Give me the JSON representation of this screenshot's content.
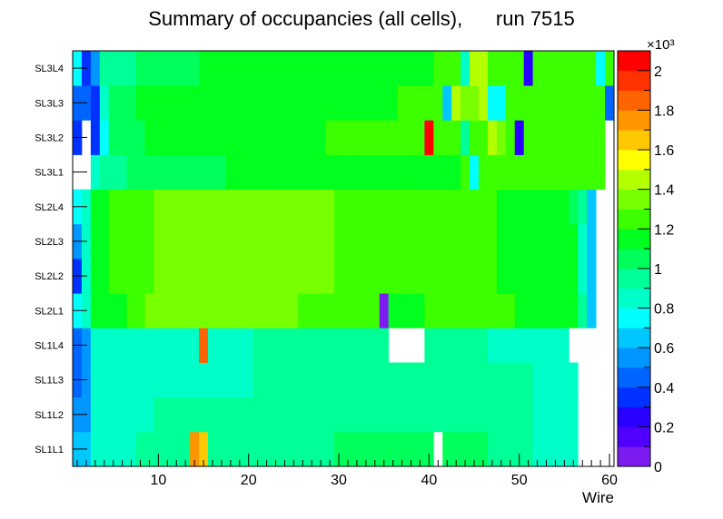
{
  "chart_data": {
    "type": "heatmap",
    "title": "Summary of occupancies (all cells),      run 7515",
    "xlabel": "Wire",
    "ylabel": "",
    "xlim": [
      0.5,
      60.5
    ],
    "x_ticks": [
      10,
      20,
      30,
      40,
      50,
      60
    ],
    "y_categories": [
      "SL1L1",
      "SL1L2",
      "SL1L3",
      "SL1L4",
      "SL2L1",
      "SL2L2",
      "SL2L3",
      "SL2L4",
      "SL3L1",
      "SL3L2",
      "SL3L3",
      "SL3L4"
    ],
    "zlim": [
      0,
      2100
    ],
    "z_exponent_label": "×10³",
    "z_ticks": [
      0,
      0.2,
      0.4,
      0.6,
      0.8,
      1,
      1.2,
      1.4,
      1.6,
      1.8,
      2
    ],
    "z_tick_labels": [
      "0",
      "0.2",
      "0.4",
      "0.6",
      "0.8",
      "1",
      "1.2",
      "1.4",
      "1.6",
      "1.8",
      "2"
    ],
    "palette": [
      "#7d1cf0",
      "#5000ff",
      "#2900ff",
      "#0032ff",
      "#0064ff",
      "#0096ff",
      "#00c8ff",
      "#00ffff",
      "#00ffc8",
      "#00ff96",
      "#00ff5a",
      "#00ff1e",
      "#3cff00",
      "#78ff00",
      "#b4ff00",
      "#ffff00",
      "#ffc800",
      "#ff9600",
      "#ff6400",
      "#ff3200",
      "#ff0000"
    ],
    "grid": false,
    "values": [
      [
        650,
        650,
        800,
        800,
        800,
        800,
        850,
        950,
        950,
        950,
        950,
        950,
        950,
        1700,
        1600,
        950,
        950,
        950,
        950,
        950,
        950,
        950,
        950,
        950,
        950,
        950,
        950,
        950,
        950,
        1000,
        1000,
        1000,
        1000,
        1000,
        1000,
        1050,
        1050,
        1050,
        1050,
        1000,
        null,
        1050,
        1050,
        1050,
        1050,
        1050,
        950,
        900,
        900,
        900,
        900,
        850,
        850,
        800,
        800,
        800,
        null,
        null,
        null,
        null
      ],
      [
        500,
        550,
        800,
        800,
        850,
        850,
        850,
        850,
        850,
        900,
        900,
        900,
        900,
        900,
        900,
        900,
        900,
        900,
        900,
        900,
        900,
        900,
        900,
        900,
        900,
        900,
        900,
        900,
        900,
        950,
        950,
        950,
        950,
        950,
        950,
        950,
        950,
        950,
        950,
        950,
        950,
        950,
        950,
        950,
        950,
        950,
        900,
        900,
        900,
        900,
        900,
        850,
        850,
        850,
        850,
        850,
        null,
        null,
        null,
        null
      ],
      [
        480,
        550,
        800,
        850,
        850,
        850,
        850,
        850,
        850,
        850,
        850,
        850,
        850,
        850,
        850,
        850,
        850,
        850,
        850,
        850,
        900,
        900,
        900,
        900,
        900,
        900,
        900,
        900,
        900,
        900,
        950,
        950,
        950,
        950,
        950,
        950,
        950,
        950,
        950,
        950,
        950,
        950,
        950,
        950,
        950,
        950,
        900,
        900,
        900,
        900,
        900,
        850,
        850,
        850,
        850,
        850,
        null,
        null,
        null,
        null
      ],
      [
        450,
        550,
        800,
        800,
        850,
        850,
        850,
        850,
        850,
        850,
        850,
        850,
        850,
        850,
        1800,
        850,
        850,
        850,
        850,
        850,
        900,
        900,
        900,
        900,
        900,
        900,
        900,
        900,
        900,
        900,
        950,
        950,
        950,
        950,
        950,
        null,
        null,
        null,
        null,
        900,
        900,
        900,
        900,
        900,
        900,
        900,
        850,
        850,
        850,
        850,
        850,
        850,
        850,
        850,
        850,
        null,
        null,
        null,
        null,
        null
      ],
      [
        700,
        850,
        1100,
        1100,
        1150,
        1150,
        1200,
        1250,
        1300,
        1300,
        1300,
        1300,
        1300,
        1300,
        1300,
        1300,
        1300,
        1300,
        1300,
        1300,
        1300,
        1300,
        1300,
        1300,
        1300,
        1250,
        1250,
        1250,
        1250,
        1250,
        1200,
        1200,
        1200,
        1200,
        80,
        1150,
        1150,
        1150,
        1150,
        1200,
        1200,
        1200,
        1200,
        1200,
        1200,
        1200,
        1200,
        1200,
        1200,
        1150,
        1150,
        1150,
        1150,
        1150,
        1150,
        1100,
        900,
        650,
        null,
        null
      ],
      [
        300,
        800,
        1150,
        1150,
        1200,
        1200,
        1200,
        1250,
        1250,
        1300,
        1300,
        1300,
        1300,
        1300,
        1300,
        1300,
        1300,
        1300,
        1350,
        1350,
        1350,
        1350,
        1350,
        1300,
        1300,
        1300,
        1300,
        1300,
        1300,
        1250,
        1250,
        1250,
        1250,
        1250,
        1200,
        1200,
        1200,
        1200,
        1200,
        1200,
        1200,
        1200,
        1200,
        1200,
        1200,
        1200,
        1200,
        1150,
        1150,
        1150,
        1150,
        1150,
        1150,
        1100,
        1100,
        1100,
        850,
        650,
        null,
        null
      ],
      [
        500,
        800,
        1150,
        1150,
        1200,
        1200,
        1200,
        1250,
        1250,
        1300,
        1300,
        1300,
        1300,
        1300,
        1300,
        1300,
        1300,
        1300,
        1350,
        1350,
        1350,
        1350,
        1350,
        1300,
        1300,
        1300,
        1300,
        1300,
        1300,
        1250,
        1250,
        1250,
        1250,
        1250,
        1200,
        1200,
        1200,
        1200,
        1200,
        1200,
        1200,
        1200,
        1200,
        1200,
        1200,
        1200,
        1200,
        1150,
        1150,
        1150,
        1150,
        1150,
        1150,
        1100,
        1100,
        1100,
        800,
        650,
        null,
        null
      ],
      [
        750,
        850,
        1150,
        1150,
        1200,
        1200,
        1200,
        1250,
        1250,
        1300,
        1300,
        1300,
        1300,
        1300,
        1300,
        1300,
        1300,
        1300,
        1350,
        1350,
        1350,
        1350,
        1350,
        1300,
        1300,
        1300,
        1300,
        1300,
        1300,
        1250,
        1250,
        1250,
        1250,
        1250,
        1200,
        1200,
        1200,
        1200,
        1200,
        1200,
        1200,
        1200,
        1200,
        1200,
        1200,
        1200,
        1200,
        1150,
        1150,
        1150,
        1150,
        1150,
        1150,
        1100,
        1100,
        1000,
        900,
        650,
        null,
        null
      ],
      [
        null,
        null,
        850,
        900,
        950,
        950,
        1000,
        1000,
        1000,
        1000,
        1000,
        1000,
        1000,
        1000,
        1000,
        1050,
        1050,
        1100,
        1100,
        1100,
        1100,
        1100,
        1100,
        1150,
        1150,
        1150,
        1150,
        1150,
        1150,
        1100,
        1100,
        1100,
        1100,
        1100,
        1100,
        1150,
        1150,
        1150,
        1150,
        1150,
        1150,
        1150,
        1150,
        1200,
        750,
        1200,
        1200,
        1200,
        1200,
        1200,
        1200,
        1200,
        1200,
        1200,
        1200,
        1200,
        1200,
        1200,
        1200,
        null
      ],
      [
        300,
        null,
        350,
        700,
        1000,
        1050,
        1050,
        1050,
        1100,
        1100,
        1100,
        1100,
        1100,
        1100,
        1100,
        1100,
        1100,
        1100,
        1100,
        1150,
        1150,
        1150,
        1150,
        1150,
        1150,
        1150,
        1150,
        1150,
        1200,
        1200,
        1200,
        1200,
        1200,
        1200,
        1200,
        1200,
        1200,
        1200,
        1200,
        2050,
        1200,
        1200,
        1200,
        950,
        1200,
        1200,
        1400,
        1350,
        1200,
        200,
        1200,
        1200,
        1200,
        1200,
        1200,
        1200,
        1200,
        1200,
        1200,
        null
      ],
      [
        400,
        450,
        350,
        800,
        1050,
        1050,
        1050,
        1100,
        1100,
        1100,
        1100,
        1100,
        1100,
        1100,
        1100,
        1100,
        1100,
        1100,
        1100,
        1100,
        1150,
        1150,
        1150,
        1150,
        1150,
        1150,
        1150,
        1150,
        1150,
        1150,
        1150,
        1150,
        1150,
        1150,
        1150,
        1150,
        1200,
        1200,
        1200,
        1200,
        1200,
        650,
        1400,
        1350,
        1300,
        1400,
        750,
        750,
        1200,
        1200,
        1200,
        1200,
        1200,
        1200,
        1200,
        1200,
        1200,
        1200,
        1200,
        400
      ],
      [
        750,
        350,
        550,
        900,
        950,
        950,
        950,
        1000,
        1000,
        1000,
        1050,
        1050,
        1050,
        1050,
        1100,
        1100,
        1100,
        1100,
        1100,
        1100,
        1100,
        1100,
        1100,
        1150,
        1150,
        1150,
        1150,
        1150,
        1150,
        1150,
        1150,
        1150,
        1150,
        1150,
        1150,
        1150,
        1150,
        1150,
        1150,
        1150,
        1200,
        1200,
        1200,
        850,
        1400,
        1400,
        1200,
        1200,
        1200,
        1200,
        200,
        1200,
        1200,
        1200,
        1200,
        1200,
        1200,
        1200,
        750,
        1200
      ]
    ]
  }
}
